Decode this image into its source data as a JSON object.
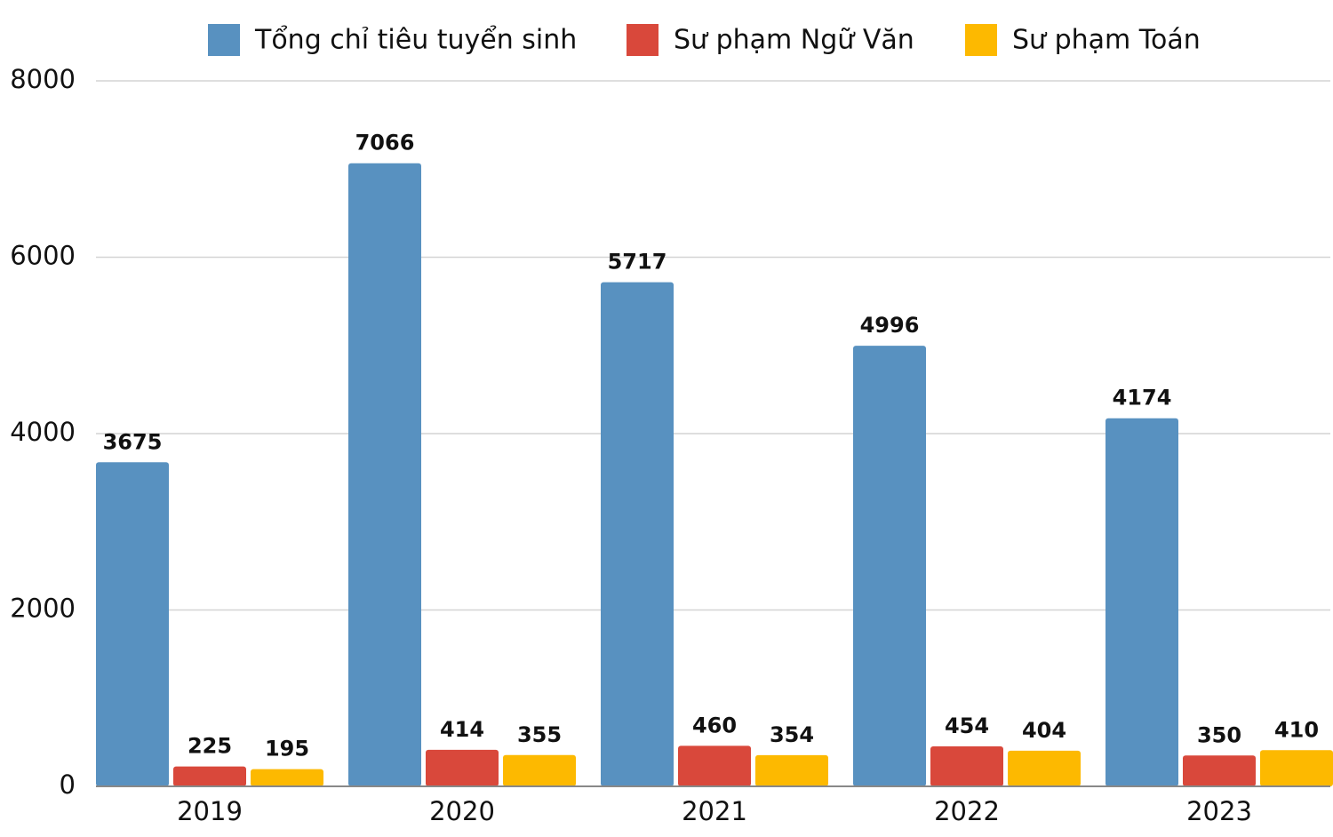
{
  "chart_data": {
    "type": "bar",
    "categories": [
      "2019",
      "2020",
      "2021",
      "2022",
      "2023"
    ],
    "series": [
      {
        "name": "Tổng chỉ tiêu tuyển sinh",
        "color": "#5891c0",
        "values": [
          3675,
          7066,
          5717,
          4996,
          4174
        ]
      },
      {
        "name": "Sư phạm Ngữ Văn",
        "color": "#d9483b",
        "values": [
          225,
          414,
          460,
          454,
          350
        ]
      },
      {
        "name": "Sư phạm Toán",
        "color": "#fdb900",
        "values": [
          195,
          355,
          354,
          404,
          410
        ]
      }
    ],
    "ylim": [
      0,
      8000
    ],
    "yticks": [
      0,
      2000,
      4000,
      6000,
      8000
    ],
    "grid": true,
    "legend": "top"
  }
}
